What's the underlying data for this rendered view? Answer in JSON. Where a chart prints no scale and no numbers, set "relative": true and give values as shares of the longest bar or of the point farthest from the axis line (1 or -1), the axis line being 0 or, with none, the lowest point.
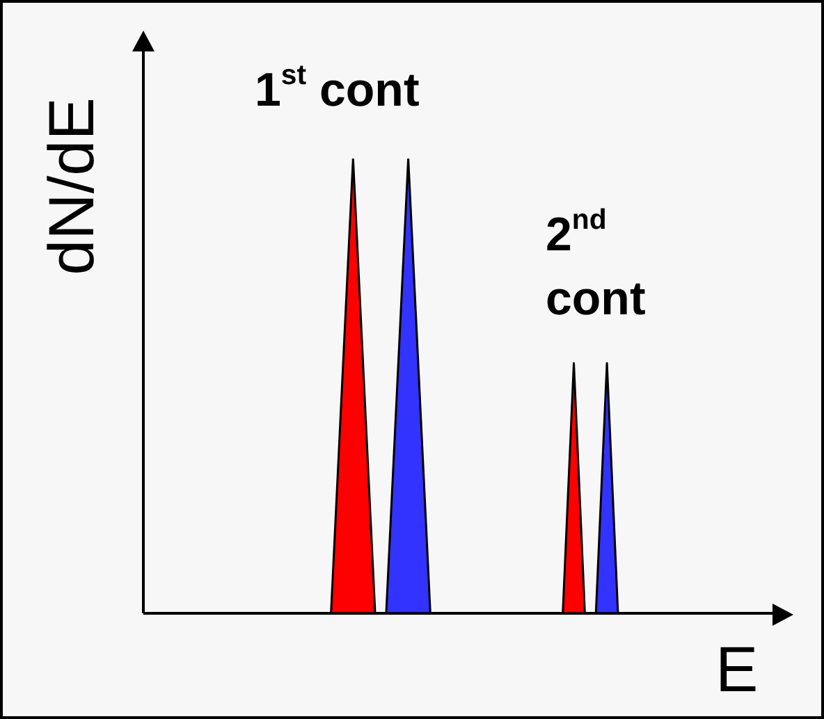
{
  "chart_data": {
    "type": "area",
    "relative": true,
    "xlabel": "E",
    "ylabel": "dN/dE",
    "legend": false,
    "annotations": [
      "1$^{st}$ cont",
      "2$^{nd}$ cont"
    ],
    "categories": [
      null,
      null,
      null,
      null,
      null,
      null,
      null,
      null,
      null,
      null,
      null,
      null,
      null,
      null,
      null,
      null,
      null,
      null,
      null,
      null,
      null,
      null,
      null,
      null,
      null,
      null,
      null,
      null,
      null,
      null,
      null,
      null,
      null,
      null,
      null,
      null,
      null,
      null,
      null,
      null,
      null,
      null,
      null,
      null,
      null,
      null,
      null,
      null,
      null,
      null,
      null,
      null,
      null,
      null,
      null,
      null,
      null,
      null
    ],
    "series": [
      {
        "color": "#ff0000",
        "values": [
          null,
          null,
          null,
          null,
          null,
          null,
          null,
          null,
          null,
          null,
          null,
          null,
          null,
          null,
          null,
          null,
          null,
          0,
          null,
          1,
          null,
          0,
          null,
          null,
          null,
          null,
          null,
          null,
          null,
          null,
          null,
          null,
          null,
          null,
          null,
          null,
          null,
          null,
          null,
          null,
          null,
          null,
          null,
          null,
          null,
          null,
          null,
          null,
          null,
          null,
          null,
          null,
          null,
          null,
          null,
          null,
          null,
          null
        ]
      },
      {
        "color": "#3333ff",
        "values": [
          null,
          null,
          null,
          null,
          null,
          null,
          null,
          null,
          null,
          null,
          null,
          null,
          null,
          null,
          null,
          null,
          null,
          null,
          null,
          null,
          null,
          null,
          0,
          null,
          1,
          null,
          0,
          null,
          null,
          null,
          null,
          null,
          null,
          null,
          null,
          null,
          null,
          null,
          null,
          null,
          null,
          null,
          null,
          null,
          null,
          null,
          null,
          null,
          null,
          null,
          null,
          null,
          null,
          null,
          null,
          null,
          null,
          null
        ]
      },
      {
        "color": "#ff0000",
        "values": [
          null,
          null,
          null,
          null,
          null,
          null,
          null,
          null,
          null,
          null,
          null,
          null,
          null,
          null,
          null,
          null,
          null,
          null,
          null,
          null,
          null,
          null,
          null,
          null,
          null,
          null,
          null,
          null,
          null,
          null,
          null,
          null,
          null,
          null,
          null,
          null,
          null,
          null,
          0,
          0.55,
          0,
          null,
          null,
          null,
          null,
          null,
          null,
          null,
          null,
          null,
          null,
          null,
          null,
          null,
          null,
          null,
          null,
          null
        ]
      },
      {
        "color": "#3333ff",
        "values": [
          null,
          null,
          null,
          null,
          null,
          null,
          null,
          null,
          null,
          null,
          null,
          null,
          null,
          null,
          null,
          null,
          null,
          null,
          null,
          null,
          null,
          null,
          null,
          null,
          null,
          null,
          null,
          null,
          null,
          null,
          null,
          null,
          null,
          null,
          null,
          null,
          null,
          null,
          null,
          null,
          null,
          0,
          0.55,
          0,
          null,
          null,
          null,
          null,
          null,
          null,
          null,
          null,
          null,
          null,
          null,
          null,
          null,
          null
        ]
      }
    ]
  }
}
